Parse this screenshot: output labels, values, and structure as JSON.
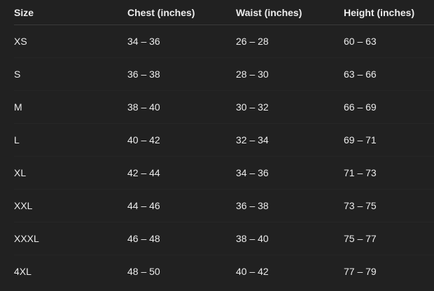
{
  "headers": [
    "Size",
    "Chest (inches)",
    "Waist (inches)",
    "Height (inches)"
  ],
  "rows": [
    [
      "XS",
      "34 – 36",
      "26 – 28",
      "60 – 63"
    ],
    [
      "S",
      "36 – 38",
      "28 – 30",
      "63 – 66"
    ],
    [
      "M",
      "38 – 40",
      "30 – 32",
      "66 – 69"
    ],
    [
      "L",
      "40 – 42",
      "32 – 34",
      "69 – 71"
    ],
    [
      "XL",
      "42 – 44",
      "34 – 36",
      "71 – 73"
    ],
    [
      "XXL",
      "44 – 46",
      "36 – 38",
      "73 – 75"
    ],
    [
      "XXXL",
      "46 – 48",
      "38 – 40",
      "75 – 77"
    ],
    [
      "4XL",
      "48 – 50",
      "40 – 42",
      "77 – 79"
    ]
  ]
}
